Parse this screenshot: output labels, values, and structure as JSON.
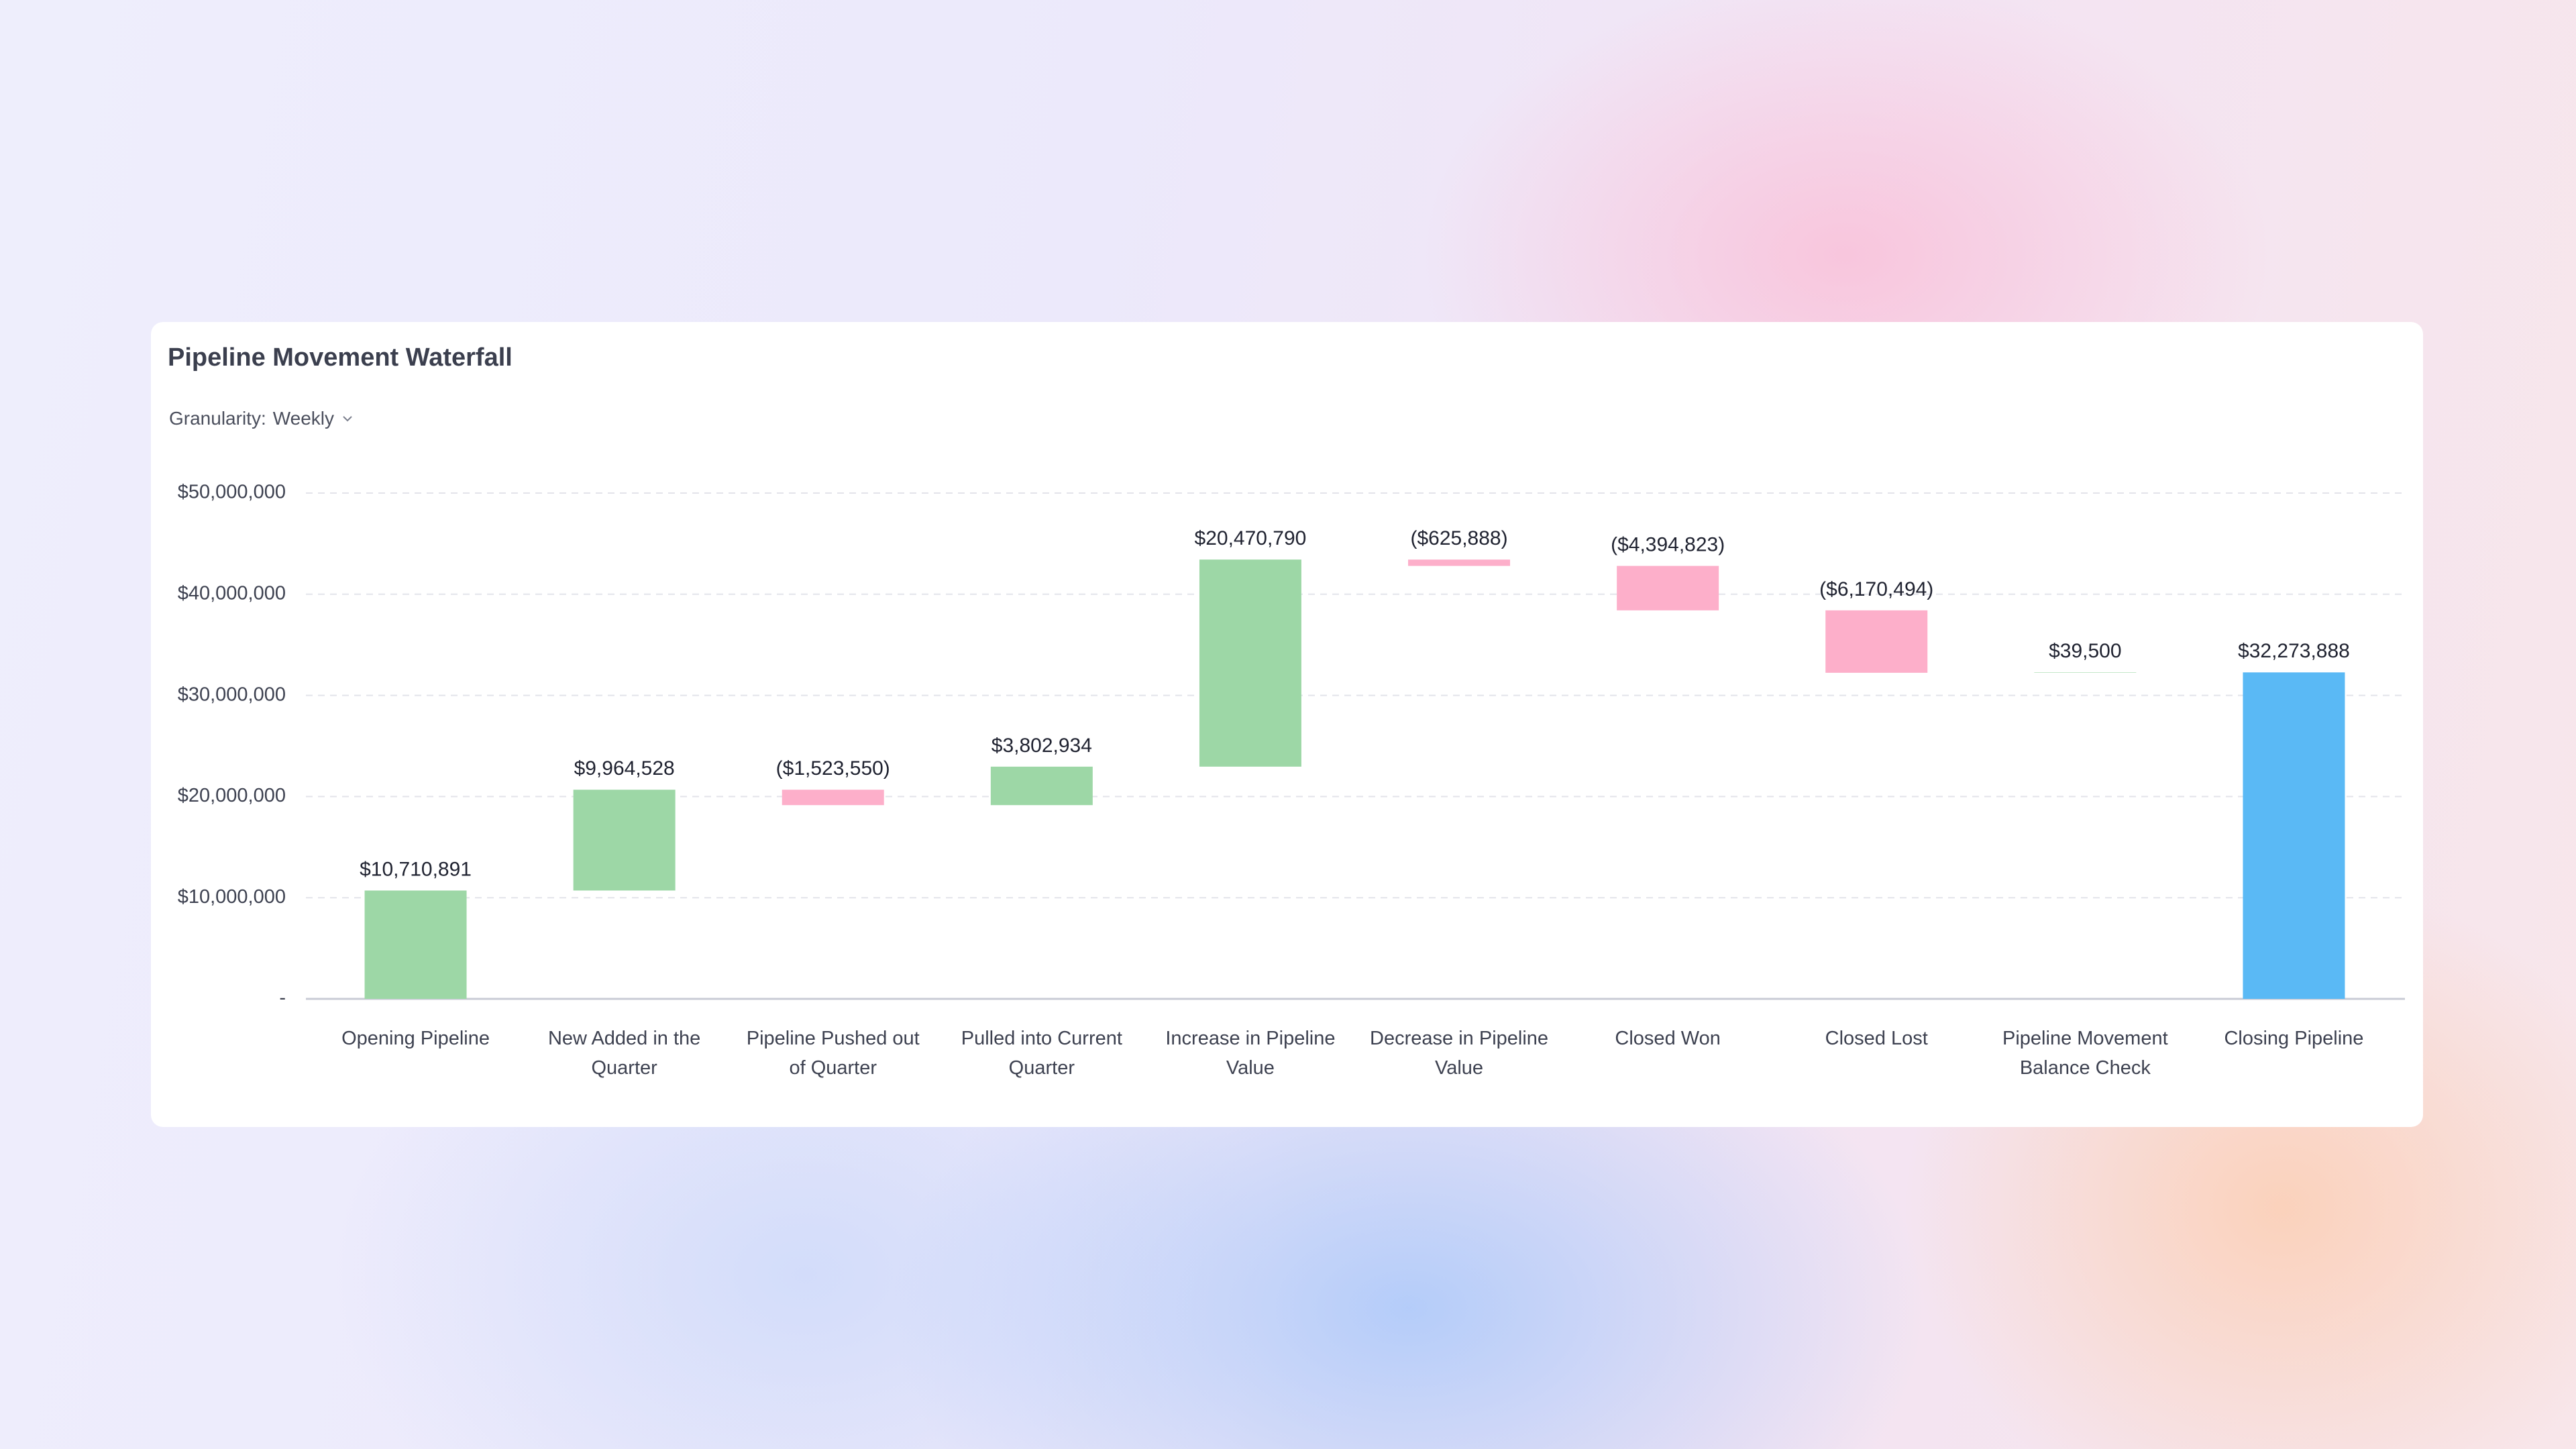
{
  "chart_data": {
    "type": "waterfall",
    "title": "Pipeline Movement Waterfall",
    "control": {
      "label": "Granularity:",
      "value": "Weekly"
    },
    "categories": [
      "Opening Pipeline",
      "New Added in the Quarter",
      "Pipeline Pushed out of Quarter",
      "Pulled into Current Quarter",
      "Increase in Pipeline Value",
      "Decrease in Pipeline Value",
      "Closed Won",
      "Closed Lost",
      "Pipeline Movement Balance Check",
      "Closing Pipeline"
    ],
    "values": [
      10710891,
      9964528,
      -1523550,
      3802934,
      20470790,
      -625888,
      -4394823,
      -6170494,
      39500,
      32273888
    ],
    "value_labels": [
      "$10,710,891",
      "$9,964,528",
      "($1,523,550)",
      "$3,802,934",
      "$20,470,790",
      "($625,888)",
      "($4,394,823)",
      "($6,170,494)",
      "$39,500",
      "$32,273,888"
    ],
    "measure": [
      "relative",
      "relative",
      "relative",
      "relative",
      "relative",
      "relative",
      "relative",
      "relative",
      "relative",
      "total"
    ],
    "colors": {
      "increase": "#9dd7a6",
      "decrease": "#fdafca",
      "total": "#5ab9f5"
    },
    "ylim": [
      0,
      50000000
    ],
    "yticks": [
      {
        "value": 0,
        "label": "-"
      },
      {
        "value": 10000000,
        "label": "$10,000,000"
      },
      {
        "value": 20000000,
        "label": "$20,000,000"
      },
      {
        "value": 30000000,
        "label": "$30,000,000"
      },
      {
        "value": 40000000,
        "label": "$40,000,000"
      },
      {
        "value": 50000000,
        "label": "$50,000,000"
      }
    ],
    "grid": true
  }
}
